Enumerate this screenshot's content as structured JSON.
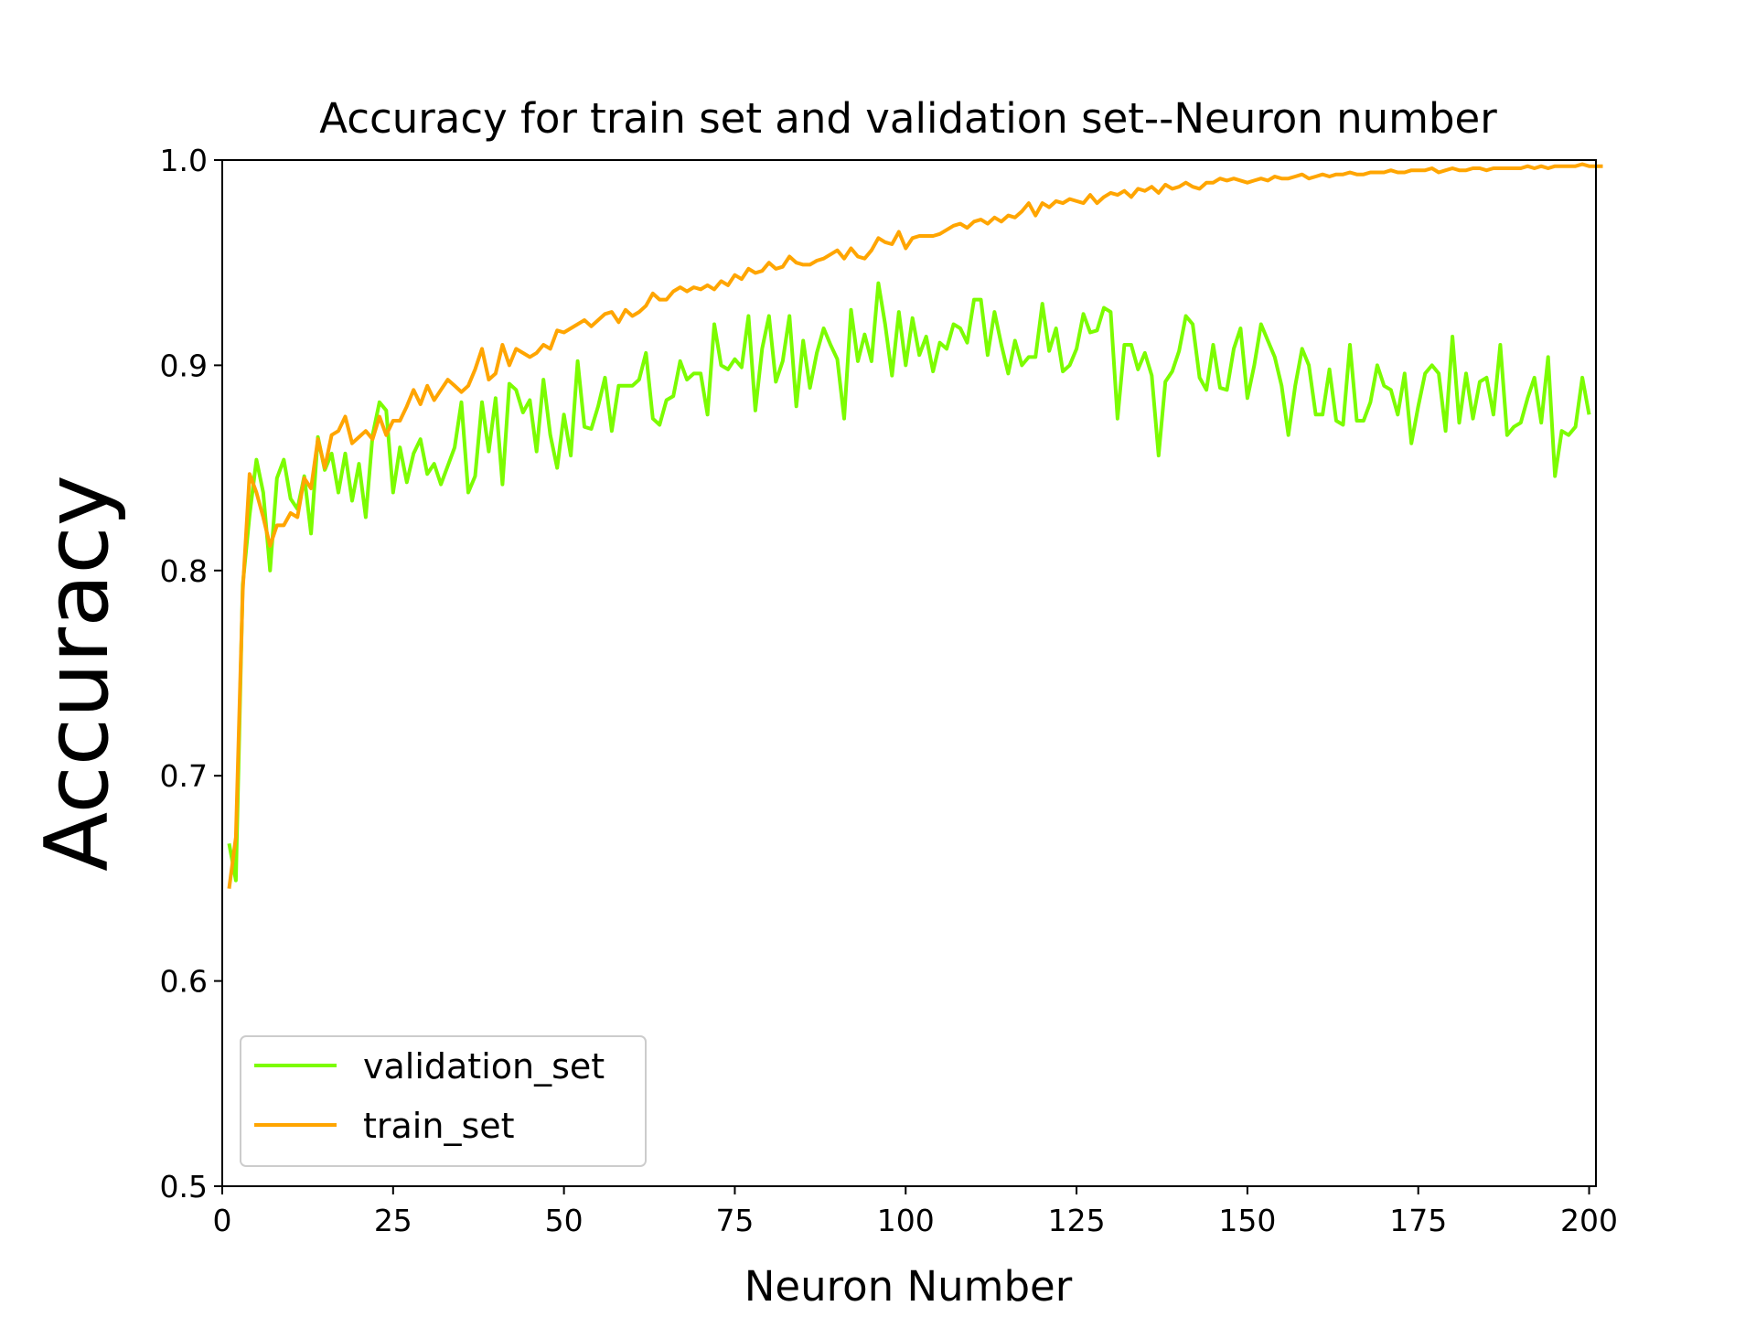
{
  "chart_data": {
    "type": "line",
    "title": "Accuracy for train set and validation set--Neuron number",
    "xlabel": "Neuron Number",
    "ylabel": "Accuracy",
    "xlim": [
      0,
      201
    ],
    "ylim": [
      0.5,
      1.0
    ],
    "xticks": [
      0,
      25,
      50,
      75,
      100,
      125,
      150,
      175,
      200
    ],
    "xtick_labels": [
      "0",
      "25",
      "50",
      "75",
      "100",
      "125",
      "150",
      "175",
      "200"
    ],
    "yticks": [
      0.5,
      0.6,
      0.7,
      0.8,
      0.9,
      1.0
    ],
    "ytick_labels": [
      "0.5",
      "0.6",
      "0.7",
      "0.8",
      "0.9",
      "1.0"
    ],
    "grid": false,
    "legend": {
      "position": "lower-left"
    },
    "series": [
      {
        "name": "validation_set",
        "color": "#7cfc00",
        "values": [
          0.667,
          0.649,
          0.793,
          0.827,
          0.854,
          0.838,
          0.8,
          0.845,
          0.854,
          0.835,
          0.83,
          0.846,
          0.818,
          0.865,
          0.849,
          0.857,
          0.838,
          0.857,
          0.834,
          0.852,
          0.826,
          0.866,
          0.882,
          0.878,
          0.838,
          0.86,
          0.843,
          0.857,
          0.864,
          0.847,
          0.852,
          0.842,
          0.851,
          0.86,
          0.882,
          0.838,
          0.846,
          0.882,
          0.858,
          0.884,
          0.842,
          0.891,
          0.888,
          0.877,
          0.883,
          0.858,
          0.893,
          0.866,
          0.85,
          0.876,
          0.856,
          0.902,
          0.87,
          0.869,
          0.88,
          0.894,
          0.868,
          0.89,
          0.89,
          0.89,
          0.893,
          0.906,
          0.874,
          0.871,
          0.883,
          0.885,
          0.902,
          0.893,
          0.896,
          0.896,
          0.876,
          0.92,
          0.9,
          0.898,
          0.903,
          0.899,
          0.924,
          0.878,
          0.908,
          0.924,
          0.892,
          0.902,
          0.924,
          0.88,
          0.912,
          0.889,
          0.906,
          0.918,
          0.91,
          0.903,
          0.874,
          0.927,
          0.902,
          0.915,
          0.902,
          0.94,
          0.92,
          0.895,
          0.926,
          0.9,
          0.923,
          0.905,
          0.914,
          0.897,
          0.911,
          0.908,
          0.92,
          0.918,
          0.911,
          0.932,
          0.932,
          0.905,
          0.926,
          0.91,
          0.896,
          0.912,
          0.9,
          0.904,
          0.904,
          0.93,
          0.907,
          0.918,
          0.897,
          0.9,
          0.908,
          0.925,
          0.916,
          0.917,
          0.928,
          0.926,
          0.874,
          0.91,
          0.91,
          0.898,
          0.906,
          0.895,
          0.856,
          0.892,
          0.897,
          0.907,
          0.924,
          0.92,
          0.894,
          0.888,
          0.91,
          0.889,
          0.888,
          0.908,
          0.918,
          0.884,
          0.9,
          0.92,
          0.912,
          0.904,
          0.89,
          0.866,
          0.89,
          0.908,
          0.9,
          0.876,
          0.876,
          0.898,
          0.873,
          0.871,
          0.91,
          0.873,
          0.873,
          0.882,
          0.9,
          0.89,
          0.888,
          0.876,
          0.896,
          0.862,
          0.88,
          0.896,
          0.9,
          0.896,
          0.868,
          0.914,
          0.872,
          0.896,
          0.874,
          0.892,
          0.894,
          0.876,
          0.91,
          0.866,
          0.87,
          0.872,
          0.884,
          0.894,
          0.872,
          0.904,
          0.846,
          0.868,
          0.866,
          0.87,
          0.894,
          0.876
        ]
      },
      {
        "name": "train_set",
        "color": "#ffa500",
        "values": [
          0.645,
          0.67,
          0.79,
          0.847,
          0.838,
          0.826,
          0.812,
          0.822,
          0.822,
          0.828,
          0.826,
          0.845,
          0.84,
          0.864,
          0.85,
          0.866,
          0.868,
          0.875,
          0.862,
          0.865,
          0.868,
          0.864,
          0.875,
          0.866,
          0.873,
          0.873,
          0.88,
          0.888,
          0.881,
          0.89,
          0.883,
          0.888,
          0.893,
          0.89,
          0.887,
          0.89,
          0.898,
          0.908,
          0.893,
          0.896,
          0.91,
          0.9,
          0.908,
          0.906,
          0.904,
          0.906,
          0.91,
          0.908,
          0.917,
          0.916,
          0.918,
          0.92,
          0.922,
          0.919,
          0.922,
          0.925,
          0.926,
          0.921,
          0.927,
          0.924,
          0.926,
          0.929,
          0.935,
          0.932,
          0.932,
          0.936,
          0.938,
          0.936,
          0.938,
          0.937,
          0.939,
          0.937,
          0.941,
          0.939,
          0.944,
          0.942,
          0.947,
          0.945,
          0.946,
          0.95,
          0.947,
          0.948,
          0.953,
          0.95,
          0.949,
          0.949,
          0.951,
          0.952,
          0.954,
          0.956,
          0.952,
          0.957,
          0.953,
          0.952,
          0.956,
          0.962,
          0.96,
          0.959,
          0.965,
          0.957,
          0.962,
          0.963,
          0.963,
          0.963,
          0.964,
          0.966,
          0.968,
          0.969,
          0.967,
          0.97,
          0.971,
          0.969,
          0.972,
          0.97,
          0.973,
          0.972,
          0.975,
          0.979,
          0.973,
          0.979,
          0.977,
          0.98,
          0.979,
          0.981,
          0.98,
          0.979,
          0.983,
          0.979,
          0.982,
          0.984,
          0.983,
          0.985,
          0.982,
          0.986,
          0.985,
          0.987,
          0.984,
          0.988,
          0.986,
          0.987,
          0.989,
          0.987,
          0.986,
          0.989,
          0.989,
          0.991,
          0.99,
          0.991,
          0.99,
          0.989,
          0.99,
          0.991,
          0.99,
          0.992,
          0.991,
          0.991,
          0.992,
          0.993,
          0.991,
          0.992,
          0.993,
          0.992,
          0.993,
          0.993,
          0.994,
          0.993,
          0.993,
          0.994,
          0.994,
          0.994,
          0.995,
          0.994,
          0.994,
          0.995,
          0.995,
          0.995,
          0.996,
          0.994,
          0.995,
          0.996,
          0.995,
          0.995,
          0.996,
          0.996,
          0.995,
          0.996,
          0.996,
          0.996,
          0.996,
          0.996,
          0.997,
          0.996,
          0.997,
          0.996,
          0.997,
          0.997,
          0.997,
          0.997,
          0.998,
          0.997,
          0.997,
          0.997
        ]
      }
    ]
  }
}
